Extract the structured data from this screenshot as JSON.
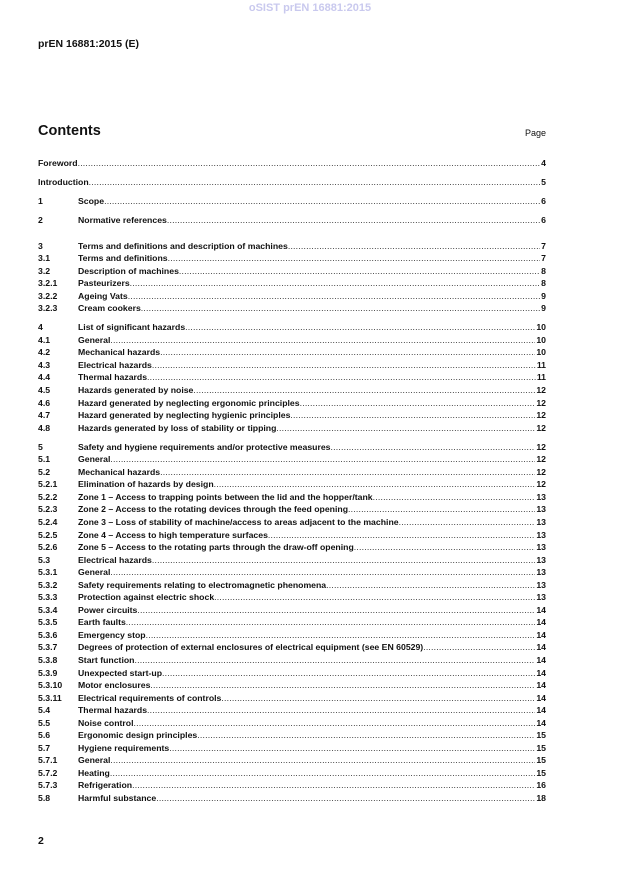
{
  "watermark": "oSIST prEN 16881:2015",
  "header": {
    "doc_id": "prEN 16881:2015 (E)"
  },
  "contents": {
    "title": "Contents",
    "page_label": "Page"
  },
  "toc_top": [
    {
      "label": "Foreword",
      "page": "4"
    },
    {
      "label": "Introduction",
      "page": "5"
    }
  ],
  "toc_groups": [
    [
      {
        "num": "1",
        "label": "Scope",
        "page": "6"
      }
    ],
    [
      {
        "num": "2",
        "label": "Normative references",
        "page": "6"
      }
    ],
    [
      {
        "num": "3",
        "label": "Terms and definitions and description of machines",
        "page": "7"
      },
      {
        "num": "3.1",
        "label": "Terms and definitions",
        "page": "7"
      },
      {
        "num": "3.2",
        "label": "Description of machines",
        "page": "8"
      },
      {
        "num": "3.2.1",
        "label": "Pasteurizers",
        "page": "8"
      },
      {
        "num": "3.2.2",
        "label": "Ageing Vats",
        "page": "9"
      },
      {
        "num": "3.2.3",
        "label": "Cream cookers",
        "page": "9"
      }
    ],
    [
      {
        "num": "4",
        "label": "List of significant hazards",
        "page": "10"
      },
      {
        "num": "4.1",
        "label": "General",
        "page": "10"
      },
      {
        "num": "4.2",
        "label": "Mechanical hazards",
        "page": "10"
      },
      {
        "num": "4.3",
        "label": "Electrical hazards",
        "page": "11"
      },
      {
        "num": "4.4",
        "label": "Thermal hazards",
        "page": "11"
      },
      {
        "num": "4.5",
        "label": "Hazards generated by noise",
        "page": "12"
      },
      {
        "num": "4.6",
        "label": "Hazard generated by neglecting ergonomic principles",
        "page": "12"
      },
      {
        "num": "4.7",
        "label": "Hazard generated by neglecting hygienic principles",
        "page": "12"
      },
      {
        "num": "4.8",
        "label": "Hazards generated by loss of stability or tipping",
        "page": "12"
      }
    ],
    [
      {
        "num": "5",
        "label": "Safety and hygiene requirements and/or protective measures",
        "page": "12"
      },
      {
        "num": "5.1",
        "label": "General",
        "page": "12"
      },
      {
        "num": "5.2",
        "label": "Mechanical hazards",
        "page": "12"
      },
      {
        "num": "5.2.1",
        "label": "Elimination of hazards by design",
        "page": "12"
      },
      {
        "num": "5.2.2",
        "label": "Zone 1 – Access to trapping points between the lid and the hopper/tank",
        "page": "13"
      },
      {
        "num": "5.2.3",
        "label": "Zone 2 – Access to the rotating devices through the feed opening",
        "page": "13"
      },
      {
        "num": "5.2.4",
        "label": "Zone 3 – Loss of stability of machine/access to areas adjacent to the machine",
        "page": "13"
      },
      {
        "num": "5.2.5",
        "label": "Zone 4 – Access to high temperature surfaces",
        "page": "13"
      },
      {
        "num": "5.2.6",
        "label": "Zone 5 – Access to the rotating parts through the draw-off opening",
        "page": "13"
      },
      {
        "num": "5.3",
        "label": "Electrical hazards",
        "page": "13"
      },
      {
        "num": "5.3.1",
        "label": "General",
        "page": "13"
      },
      {
        "num": "5.3.2",
        "label": "Safety requirements relating to electromagnetic phenomena",
        "page": "13"
      },
      {
        "num": "5.3.3",
        "label": "Protection against electric shock",
        "page": "13"
      },
      {
        "num": "5.3.4",
        "label": "Power circuits",
        "page": "14"
      },
      {
        "num": "5.3.5",
        "label": "Earth faults",
        "page": "14"
      },
      {
        "num": "5.3.6",
        "label": "Emergency stop",
        "page": "14"
      },
      {
        "num": "5.3.7",
        "label": "Degrees of protection of external enclosures of electrical equipment (see EN 60529)",
        "page": "14"
      },
      {
        "num": "5.3.8",
        "label": "Start function",
        "page": "14"
      },
      {
        "num": "5.3.9",
        "label": "Unexpected start-up",
        "page": "14"
      },
      {
        "num": "5.3.10",
        "label": "Motor enclosures",
        "page": "14"
      },
      {
        "num": "5.3.11",
        "label": "Electrical requirements of controls",
        "page": "14"
      },
      {
        "num": "5.4",
        "label": "Thermal hazards",
        "page": "14"
      },
      {
        "num": "5.5",
        "label": "Noise control",
        "page": "14"
      },
      {
        "num": "5.6",
        "label": "Ergonomic design principles",
        "page": "15"
      },
      {
        "num": "5.7",
        "label": "Hygiene requirements",
        "page": "15"
      },
      {
        "num": "5.7.1",
        "label": "General",
        "page": "15"
      },
      {
        "num": "5.7.2",
        "label": "Heating",
        "page": "15"
      },
      {
        "num": "5.7.3",
        "label": "Refrigeration",
        "page": "16"
      },
      {
        "num": "5.8",
        "label": "Harmful substance",
        "page": "18"
      }
    ]
  ],
  "footer": {
    "page_number": "2"
  }
}
